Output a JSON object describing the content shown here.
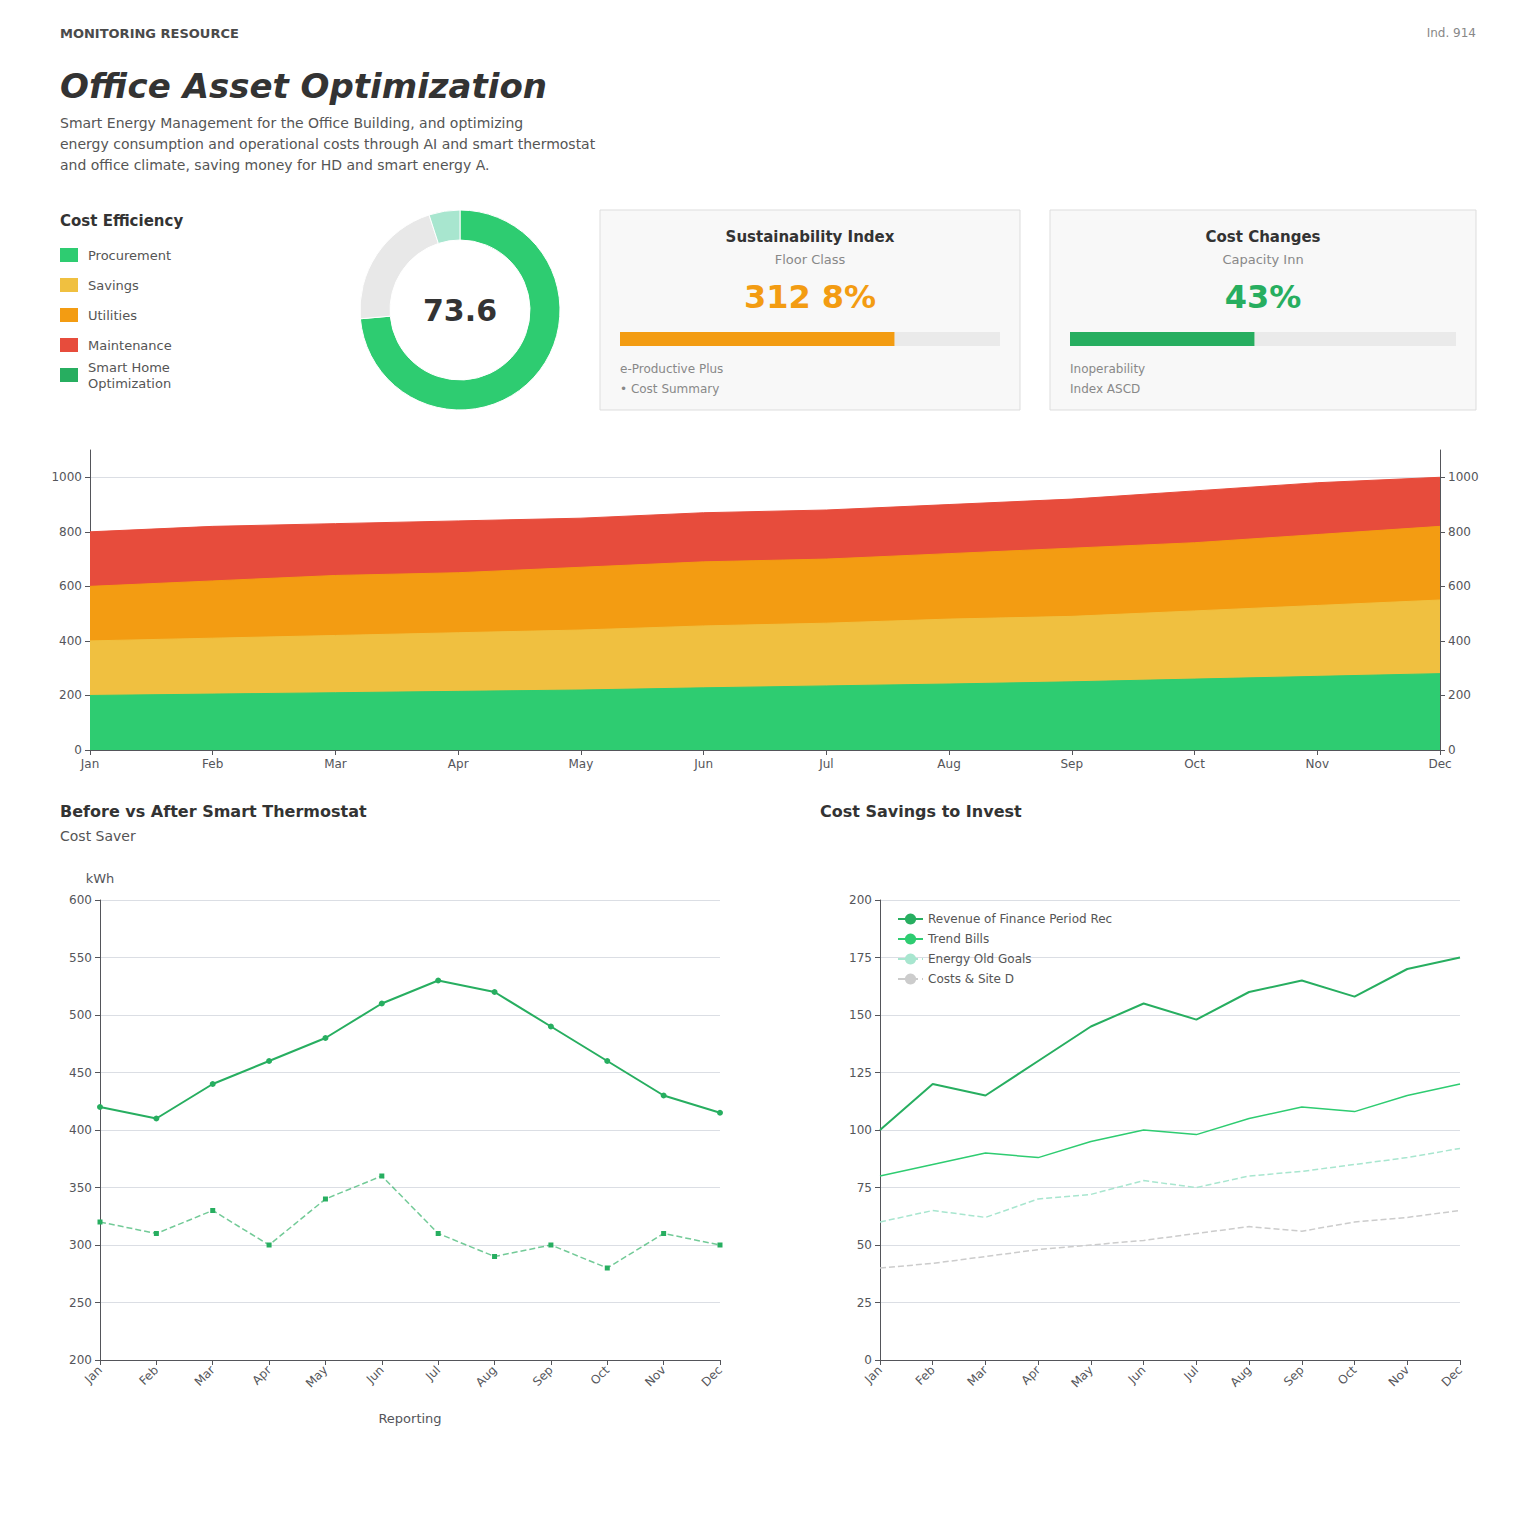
{
  "chart_data": [
    {
      "type": "text",
      "title": "Office Asset Optimization",
      "subtitle": "Smart Energy Management for the Office Building, and optimizing\nenergy consumption and operational costs through AI and smart thermostat\nand office climate, saving money for HD and smart energy A.",
      "annotations": [
        "MONITORING RESOURCE",
        "Ind. 914"
      ]
    },
    {
      "type": "legend",
      "title": "Cost Efficiency",
      "series": [
        {
          "name": "Procurement",
          "color": "#2ecc71"
        },
        {
          "name": "Savings",
          "color": "#f0c040"
        },
        {
          "name": "Utilities",
          "color": "#f39c12"
        },
        {
          "name": "Maintenance",
          "color": "#e74c3c"
        },
        {
          "name": "Smart Home\nOptimization",
          "color": "#27ae60"
        }
      ]
    },
    {
      "type": "pie",
      "values": [
        73.6,
        21.4,
        5
      ],
      "colors": [
        "#2ecc71",
        "#e8e8e8",
        "#a8e6cf"
      ],
      "annotations": [
        "73.6"
      ]
    },
    {
      "type": "kpi",
      "title": "Sustainability Index",
      "subtitle": "Floor Class",
      "annotations": [
        "312 8%",
        "e-Productive Plus",
        "• Cost Summary"
      ],
      "values": [
        0.65
      ],
      "xlim": [
        0,
        0.9
      ],
      "color": "#f39c12",
      "tick_labels": false
    },
    {
      "type": "kpi",
      "title": "Cost Changes",
      "subtitle": "Capacity Inn",
      "annotations": [
        "43%",
        "Inoperability",
        "Index ASCD"
      ],
      "values": [
        0.43
      ],
      "xlim": [
        0,
        0.9
      ],
      "color": "#27ae60",
      "tick_labels": false
    },
    {
      "type": "area",
      "categories": [
        "Jan",
        "Feb",
        "Mar",
        "Apr",
        "May",
        "Jun",
        "Jul",
        "Aug",
        "Sep",
        "Oct",
        "Nov",
        "Dec"
      ],
      "series": [
        {
          "color": "#2ecc71",
          "values": [
            200,
            205,
            210,
            215,
            220,
            228,
            235,
            242,
            250,
            260,
            270,
            280
          ]
        },
        {
          "color": "#f0c040",
          "values": [
            400,
            410,
            420,
            430,
            440,
            455,
            465,
            480,
            490,
            510,
            530,
            550
          ]
        },
        {
          "color": "#f39c12",
          "values": [
            600,
            620,
            640,
            650,
            670,
            690,
            700,
            720,
            740,
            760,
            790,
            820
          ]
        },
        {
          "color": "#e74c3c",
          "values": [
            800,
            820,
            830,
            840,
            850,
            870,
            880,
            900,
            920,
            950,
            980,
            1000
          ]
        }
      ],
      "stacked": false,
      "ylim": [
        0,
        1100
      ],
      "yticks": [
        0,
        200,
        400,
        600,
        800,
        1000
      ],
      "y2lim": [
        0,
        1100
      ],
      "y2ticks": [
        0,
        200,
        400,
        600,
        800,
        1000
      ],
      "grid": true
    },
    {
      "type": "line",
      "title": "Before vs After Smart Thermostat",
      "subtitle": "Cost Saver",
      "ylabel": "kWh",
      "xlabel": "Reporting",
      "categories": [
        "Jan",
        "Feb",
        "Mar",
        "Apr",
        "May",
        "Jun",
        "Jul",
        "Aug",
        "Sep",
        "Oct",
        "Nov",
        "Dec"
      ],
      "series": [
        {
          "color": "#27ae60",
          "marker": "circle",
          "line_style": "solid",
          "values": [
            420,
            410,
            440,
            460,
            480,
            510,
            530,
            520,
            490,
            460,
            430,
            415
          ]
        },
        {
          "color": "#27ae60",
          "marker": "square",
          "line_style": "dashed",
          "values": [
            320,
            310,
            330,
            300,
            340,
            360,
            310,
            290,
            300,
            280,
            310,
            300
          ]
        }
      ],
      "ylim": [
        200,
        600
      ],
      "yticks": [
        200,
        250,
        300,
        350,
        400,
        450,
        500,
        550,
        600
      ],
      "grid": true
    },
    {
      "type": "line",
      "title": "Cost Savings to Invest",
      "categories": [
        "Jan",
        "Feb",
        "Mar",
        "Apr",
        "May",
        "Jun",
        "Jul",
        "Aug",
        "Sep",
        "Oct",
        "Nov",
        "Dec"
      ],
      "series": [
        {
          "name": "Revenue of Finance Period Rec",
          "color": "#27ae60",
          "marker": "none",
          "line_style": "solid",
          "values": [
            100,
            120,
            115,
            130,
            145,
            155,
            148,
            160,
            165,
            158,
            170,
            175
          ]
        },
        {
          "name": "Trend Bills",
          "color": "#2ecc71",
          "marker": "none",
          "line_style": "solid",
          "values": [
            80,
            85,
            90,
            88,
            95,
            100,
            98,
            105,
            110,
            108,
            115,
            120
          ]
        },
        {
          "name": "Energy Old Goals",
          "color": "#a8e6cf",
          "marker": "none",
          "line_style": "dashed",
          "values": [
            60,
            65,
            62,
            70,
            72,
            78,
            75,
            80,
            82,
            85,
            88,
            92
          ]
        },
        {
          "name": "Costs & Site D",
          "color": "#cccccc",
          "marker": "none",
          "line_style": "dashed",
          "values": [
            40,
            42,
            45,
            48,
            50,
            52,
            55,
            58,
            56,
            60,
            62,
            65
          ]
        }
      ],
      "ylim": [
        0,
        200
      ],
      "yticks": [
        0,
        25,
        50,
        75,
        100,
        125,
        150,
        175,
        200
      ],
      "grid": true,
      "legend": "upper left"
    }
  ]
}
